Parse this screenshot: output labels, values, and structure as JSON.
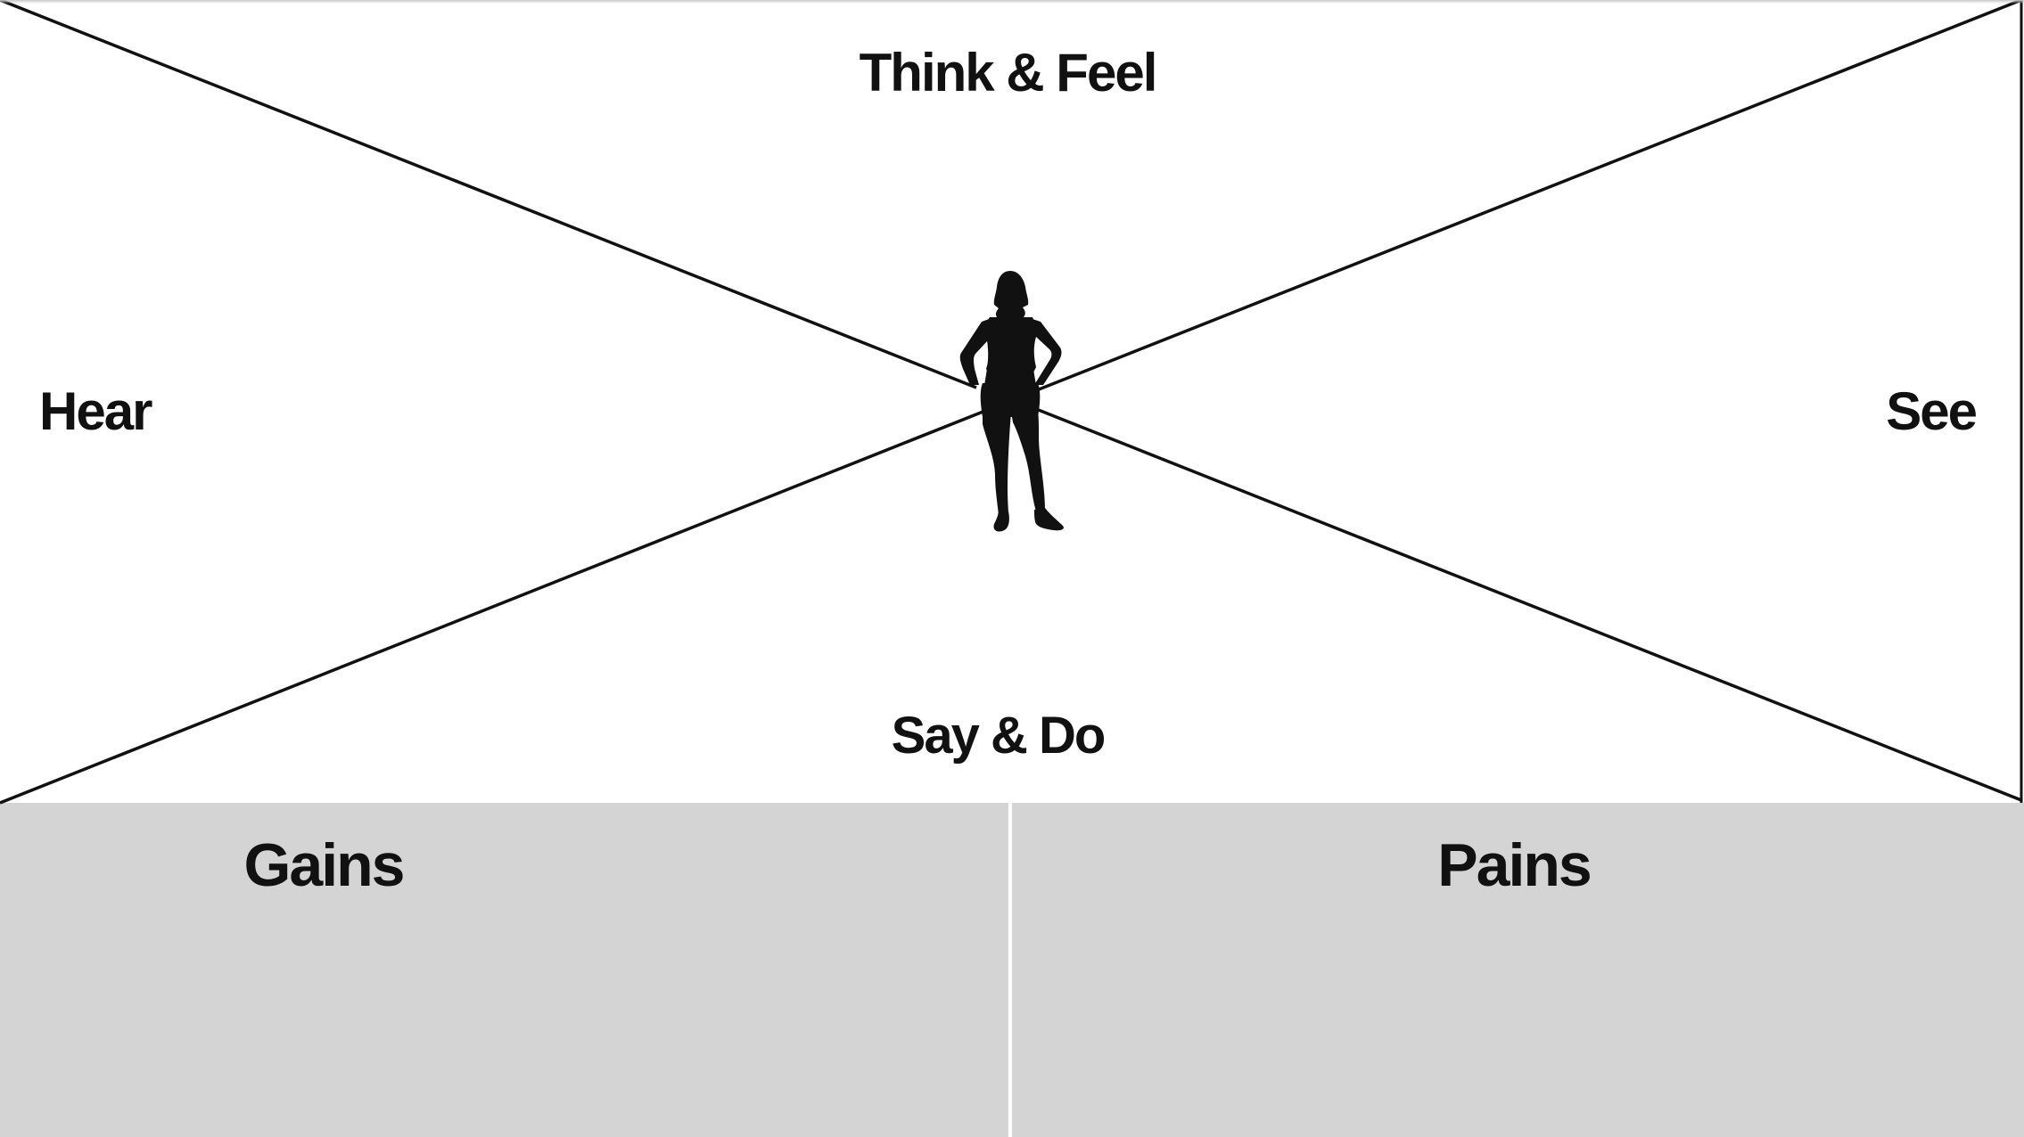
{
  "diagram": {
    "quadrants": {
      "top": "Think & Feel",
      "left": "Hear",
      "right": "See",
      "bottom": "Say & Do"
    },
    "bottom_panels": {
      "left": "Gains",
      "right": "Pains"
    },
    "center_icon": "person-silhouette-icon"
  },
  "colors": {
    "background": "#ffffff",
    "panel_fill": "#d4d4d4",
    "line": "#111111",
    "text": "#111111"
  }
}
